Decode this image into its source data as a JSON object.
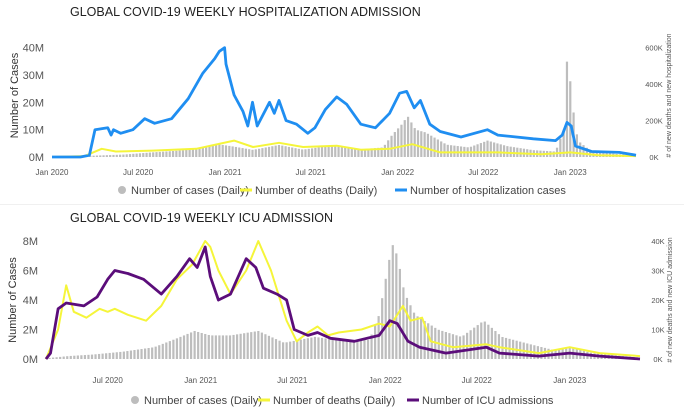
{
  "chart_data": [
    {
      "type": "bar",
      "title": "GLOBAL COVID-19 WEEKLY HOSPITALIZATION ADMISSION",
      "ylabel": "Number of Cases",
      "y2label": "# of new deaths and new hospitalization",
      "ylim": [
        0,
        45000000
      ],
      "y2lim": [
        0,
        675000
      ],
      "xlim": [
        "2020-01-01",
        "2023-05-20"
      ],
      "yticks": [
        "0M",
        "10M",
        "20M",
        "30M",
        "40M"
      ],
      "y2ticks": [
        "0K",
        "200K",
        "400K",
        "600K"
      ],
      "xticks": [
        {
          "date": "2020-01-01",
          "label": "Jan 2020"
        },
        {
          "date": "2020-07-01",
          "label": "Jul 2020"
        },
        {
          "date": "2021-01-01",
          "label": "Jan 2021"
        },
        {
          "date": "2021-07-01",
          "label": "Jul 2021"
        },
        {
          "date": "2022-01-01",
          "label": "Jan 2022"
        },
        {
          "date": "2022-07-01",
          "label": "Jul 2022"
        },
        {
          "date": "2023-01-01",
          "label": "Jan 2023"
        }
      ],
      "grid": false,
      "legend_position": "bottom",
      "colors": {
        "cases": "#bdbdbd",
        "deaths": "#f5f53a",
        "hosp": "#1f8ef1"
      },
      "series": [
        {
          "name": "Number of cases (Daily)",
          "kind": "bar",
          "axis": "left",
          "color": "#bdbdbd",
          "points": [
            [
              "2020-03-01",
              0.3
            ],
            [
              "2020-04-15",
              0.6
            ],
            [
              "2020-06-01",
              0.9
            ],
            [
              "2020-08-01",
              1.7
            ],
            [
              "2020-10-01",
              2.4
            ],
            [
              "2020-11-15",
              3.6
            ],
            [
              "2020-12-20",
              4.6
            ],
            [
              "2021-01-20",
              3.8
            ],
            [
              "2021-03-01",
              2.6
            ],
            [
              "2021-04-25",
              4.4
            ],
            [
              "2021-06-15",
              2.7
            ],
            [
              "2021-08-15",
              4.2
            ],
            [
              "2021-10-15",
              2.8
            ],
            [
              "2021-12-01",
              3.5
            ],
            [
              "2021-12-20",
              8
            ],
            [
              "2022-01-10",
              12
            ],
            [
              "2022-01-22",
              15
            ],
            [
              "2022-02-08",
              10
            ],
            [
              "2022-03-01",
              9
            ],
            [
              "2022-04-15",
              4.5
            ],
            [
              "2022-06-01",
              3.5
            ],
            [
              "2022-07-10",
              6
            ],
            [
              "2022-08-20",
              4
            ],
            [
              "2022-10-15",
              2.5
            ],
            [
              "2022-12-01",
              2
            ],
            [
              "2022-12-18",
              10
            ],
            [
              "2022-12-27",
              42
            ],
            [
              "2023-01-03",
              22
            ],
            [
              "2023-01-17",
              6
            ],
            [
              "2023-02-15",
              2
            ],
            [
              "2023-04-15",
              1
            ],
            [
              "2023-05-20",
              0.5
            ]
          ]
        },
        {
          "name": "Number of deaths (Daily)",
          "kind": "line",
          "axis": "right",
          "color": "#f5f53a",
          "points": [
            [
              "2020-01-01",
              0
            ],
            [
              "2020-03-10",
              5
            ],
            [
              "2020-04-15",
              45
            ],
            [
              "2020-05-15",
              30
            ],
            [
              "2020-08-01",
              35
            ],
            [
              "2020-11-01",
              45
            ],
            [
              "2021-01-20",
              90
            ],
            [
              "2021-03-01",
              55
            ],
            [
              "2021-04-25",
              78
            ],
            [
              "2021-06-15",
              55
            ],
            [
              "2021-08-25",
              62
            ],
            [
              "2021-10-15",
              40
            ],
            [
              "2021-12-15",
              45
            ],
            [
              "2022-02-01",
              70
            ],
            [
              "2022-04-01",
              25
            ],
            [
              "2022-08-01",
              25
            ],
            [
              "2022-11-01",
              15
            ],
            [
              "2023-01-01",
              25
            ],
            [
              "2023-03-01",
              10
            ],
            [
              "2023-05-20",
              5
            ]
          ]
        },
        {
          "name": "Number of hospitalization cases",
          "kind": "line",
          "axis": "right",
          "color": "#1f8ef1",
          "points": [
            [
              "2020-01-01",
              0
            ],
            [
              "2020-03-01",
              0
            ],
            [
              "2020-03-20",
              10
            ],
            [
              "2020-04-01",
              150
            ],
            [
              "2020-04-28",
              160
            ],
            [
              "2020-05-05",
              120
            ],
            [
              "2020-05-10",
              150
            ],
            [
              "2020-05-25",
              130
            ],
            [
              "2020-06-20",
              150
            ],
            [
              "2020-07-15",
              210
            ],
            [
              "2020-08-05",
              185
            ],
            [
              "2020-09-10",
              210
            ],
            [
              "2020-10-15",
              320
            ],
            [
              "2020-11-15",
              460
            ],
            [
              "2020-12-10",
              540
            ],
            [
              "2020-12-20",
              580
            ],
            [
              "2020-12-31",
              600
            ],
            [
              "2021-01-03",
              510
            ],
            [
              "2021-01-20",
              340
            ],
            [
              "2021-02-08",
              250
            ],
            [
              "2021-02-18",
              170
            ],
            [
              "2021-02-28",
              300
            ],
            [
              "2021-03-10",
              170
            ],
            [
              "2021-04-05",
              300
            ],
            [
              "2021-04-15",
              240
            ],
            [
              "2021-04-25",
              310
            ],
            [
              "2021-05-10",
              200
            ],
            [
              "2021-06-01",
              180
            ],
            [
              "2021-06-25",
              130
            ],
            [
              "2021-07-10",
              160
            ],
            [
              "2021-08-01",
              260
            ],
            [
              "2021-08-25",
              330
            ],
            [
              "2021-09-15",
              290
            ],
            [
              "2021-10-15",
              180
            ],
            [
              "2021-11-15",
              160
            ],
            [
              "2021-12-15",
              240
            ],
            [
              "2022-01-05",
              350
            ],
            [
              "2022-01-20",
              360
            ],
            [
              "2022-02-05",
              270
            ],
            [
              "2022-02-18",
              310
            ],
            [
              "2022-03-10",
              180
            ],
            [
              "2022-04-01",
              140
            ],
            [
              "2022-05-15",
              110
            ],
            [
              "2022-07-10",
              150
            ],
            [
              "2022-08-01",
              120
            ],
            [
              "2022-10-15",
              100
            ],
            [
              "2022-12-01",
              90
            ],
            [
              "2022-12-15",
              120
            ],
            [
              "2022-12-25",
              190
            ],
            [
              "2023-01-03",
              170
            ],
            [
              "2023-01-12",
              60
            ],
            [
              "2023-02-15",
              30
            ],
            [
              "2023-04-15",
              25
            ],
            [
              "2023-05-20",
              10
            ]
          ]
        }
      ]
    },
    {
      "type": "bar",
      "title": "GLOBAL COVID-19 WEEKLY ICU ADMISSION",
      "ylabel": "Number of Cases",
      "y2label": "# of new deaths and new ICU admission",
      "ylim": [
        0,
        8000000
      ],
      "y2lim": [
        0,
        40000
      ],
      "xlim": [
        "2020-03-01",
        "2023-05-20"
      ],
      "yticks": [
        "0M",
        "2M",
        "4M",
        "6M",
        "8M"
      ],
      "y2ticks": [
        "0K",
        "10K",
        "20K",
        "30K",
        "40K"
      ],
      "xticks": [
        {
          "date": "2020-07-01",
          "label": "Jul 2020"
        },
        {
          "date": "2021-01-01",
          "label": "Jan 2021"
        },
        {
          "date": "2021-07-01",
          "label": "Jul 2021"
        },
        {
          "date": "2022-01-01",
          "label": "Jan 2022"
        },
        {
          "date": "2022-07-01",
          "label": "Jul 2022"
        },
        {
          "date": "2023-01-01",
          "label": "Jan 2023"
        }
      ],
      "grid": false,
      "legend_position": "bottom",
      "colors": {
        "cases": "#bdbdbd",
        "deaths": "#f5f53a",
        "icu": "#5b0d7a"
      },
      "series": [
        {
          "name": "Number of cases (Daily)",
          "kind": "bar",
          "axis": "left",
          "color": "#bdbdbd",
          "points": [
            [
              "2020-03-01",
              0.05
            ],
            [
              "2020-04-15",
              0.2
            ],
            [
              "2020-06-01",
              0.3
            ],
            [
              "2020-08-01",
              0.5
            ],
            [
              "2020-10-01",
              0.8
            ],
            [
              "2020-11-15",
              1.4
            ],
            [
              "2020-12-20",
              1.9
            ],
            [
              "2021-01-20",
              1.6
            ],
            [
              "2021-03-01",
              1.6
            ],
            [
              "2021-04-25",
              1.9
            ],
            [
              "2021-06-15",
              1.1
            ],
            [
              "2021-08-15",
              1.5
            ],
            [
              "2021-10-15",
              1.2
            ],
            [
              "2021-12-01",
              1.3
            ],
            [
              "2021-12-20",
              3
            ],
            [
              "2022-01-05",
              6
            ],
            [
              "2022-01-15",
              7.8
            ],
            [
              "2022-01-25",
              7
            ],
            [
              "2022-02-08",
              4.5
            ],
            [
              "2022-03-01",
              3
            ],
            [
              "2022-04-15",
              2
            ],
            [
              "2022-06-01",
              1.5
            ],
            [
              "2022-07-15",
              2.6
            ],
            [
              "2022-08-20",
              1.5
            ],
            [
              "2022-10-15",
              1
            ],
            [
              "2022-12-01",
              0.6
            ],
            [
              "2023-01-01",
              0.8
            ],
            [
              "2023-02-15",
              0.4
            ],
            [
              "2023-04-15",
              0.2
            ],
            [
              "2023-05-20",
              0.1
            ]
          ]
        },
        {
          "name": "Number of deaths (Daily)",
          "kind": "line",
          "axis": "right",
          "color": "#f5f53a",
          "points": [
            [
              "2020-03-01",
              0
            ],
            [
              "2020-03-25",
              10
            ],
            [
              "2020-04-10",
              25
            ],
            [
              "2020-04-25",
              16
            ],
            [
              "2020-05-20",
              14
            ],
            [
              "2020-06-15",
              17
            ],
            [
              "2020-07-01",
              16
            ],
            [
              "2020-07-15",
              17
            ],
            [
              "2020-08-10",
              15
            ],
            [
              "2020-09-15",
              13
            ],
            [
              "2020-10-15",
              18
            ],
            [
              "2020-11-15",
              27
            ],
            [
              "2020-12-15",
              32
            ],
            [
              "2021-01-10",
              40
            ],
            [
              "2021-01-20",
              38
            ],
            [
              "2021-02-05",
              30
            ],
            [
              "2021-03-01",
              22
            ],
            [
              "2021-04-01",
              30
            ],
            [
              "2021-04-25",
              40
            ],
            [
              "2021-05-20",
              30
            ],
            [
              "2021-06-20",
              13
            ],
            [
              "2021-07-10",
              6
            ],
            [
              "2021-08-01",
              9
            ],
            [
              "2021-08-20",
              11
            ],
            [
              "2021-09-10",
              8
            ],
            [
              "2021-10-01",
              9
            ],
            [
              "2021-11-15",
              10
            ],
            [
              "2021-12-20",
              12
            ],
            [
              "2022-01-10",
              11
            ],
            [
              "2022-02-05",
              18
            ],
            [
              "2022-02-20",
              13
            ],
            [
              "2022-03-15",
              14
            ],
            [
              "2022-04-01",
              6
            ],
            [
              "2022-05-15",
              4
            ],
            [
              "2022-07-20",
              5
            ],
            [
              "2022-08-15",
              4
            ],
            [
              "2022-11-01",
              2
            ],
            [
              "2023-01-01",
              4
            ],
            [
              "2023-03-01",
              2
            ],
            [
              "2023-05-20",
              1
            ]
          ]
        },
        {
          "name": "Number of ICU admissions",
          "kind": "line",
          "axis": "right",
          "color": "#5b0d7a",
          "points": [
            [
              "2020-03-01",
              0
            ],
            [
              "2020-03-10",
              2
            ],
            [
              "2020-03-25",
              17
            ],
            [
              "2020-04-10",
              19
            ],
            [
              "2020-05-15",
              18
            ],
            [
              "2020-06-10",
              21
            ],
            [
              "2020-07-01",
              27
            ],
            [
              "2020-07-15",
              30
            ],
            [
              "2020-08-10",
              29
            ],
            [
              "2020-09-10",
              27
            ],
            [
              "2020-10-15",
              22
            ],
            [
              "2020-11-15",
              28
            ],
            [
              "2020-12-10",
              34
            ],
            [
              "2020-12-25",
              31
            ],
            [
              "2021-01-10",
              38
            ],
            [
              "2021-01-20",
              28
            ],
            [
              "2021-02-05",
              20
            ],
            [
              "2021-03-01",
              22
            ],
            [
              "2021-04-01",
              34
            ],
            [
              "2021-04-20",
              31
            ],
            [
              "2021-05-05",
              24
            ],
            [
              "2021-06-01",
              22
            ],
            [
              "2021-06-20",
              20
            ],
            [
              "2021-07-05",
              10
            ],
            [
              "2021-08-01",
              8
            ],
            [
              "2021-08-20",
              9
            ],
            [
              "2021-09-15",
              7
            ],
            [
              "2021-11-01",
              6
            ],
            [
              "2021-12-20",
              8
            ],
            [
              "2022-01-10",
              13
            ],
            [
              "2022-01-25",
              12
            ],
            [
              "2022-02-15",
              6
            ],
            [
              "2022-03-10",
              4
            ],
            [
              "2022-05-01",
              2
            ],
            [
              "2022-07-20",
              4
            ],
            [
              "2022-08-15",
              2
            ],
            [
              "2022-11-01",
              1
            ],
            [
              "2023-01-01",
              2
            ],
            [
              "2023-03-01",
              1
            ],
            [
              "2023-05-20",
              0
            ]
          ]
        }
      ]
    }
  ]
}
